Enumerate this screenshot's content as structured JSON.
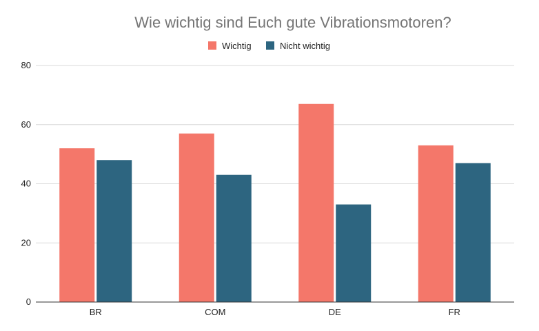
{
  "chart_data": {
    "type": "bar",
    "title": "Wie wichtig sind Euch gute Vibrationsmotoren?",
    "categories": [
      "BR",
      "COM",
      "DE",
      "FR"
    ],
    "series": [
      {
        "name": "Wichtig",
        "color": "#f4776a",
        "values": [
          52,
          57,
          67,
          53
        ]
      },
      {
        "name": "Nicht wichtig",
        "color": "#2d6580",
        "values": [
          48,
          43,
          33,
          47
        ]
      }
    ],
    "ylim": [
      0,
      80
    ],
    "yticks": [
      0,
      20,
      40,
      60,
      80
    ],
    "xlabel": "",
    "ylabel": "",
    "grid": true,
    "legend_position": "top"
  }
}
